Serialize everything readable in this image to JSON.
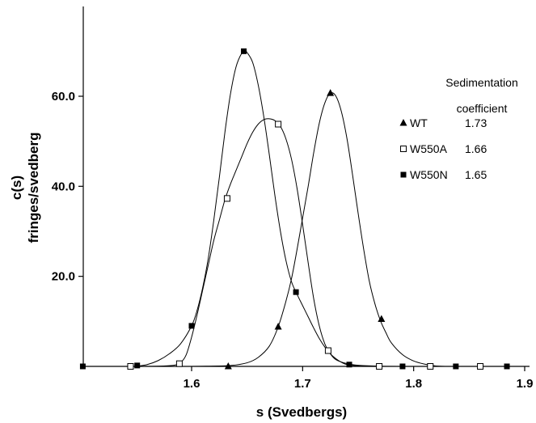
{
  "chart_data": {
    "type": "line",
    "xlabel": "s (Svedbergs)",
    "ylabel_line1": "c(s)",
    "ylabel_line2": "fringes/svedberg",
    "xlim": [
      1.5,
      1.9
    ],
    "ylim": [
      0,
      80
    ],
    "x_ticks": [
      1.6,
      1.7,
      1.8,
      1.9
    ],
    "x_tick_labels": [
      "1.6",
      "1.7",
      "1.8",
      "1.9"
    ],
    "y_ticks": [
      20,
      40,
      60
    ],
    "y_tick_labels": [
      "20.0",
      "40.0",
      "60.0"
    ],
    "grid": false,
    "legend": {
      "placement": "right",
      "header_line1": "Sedimentation",
      "header_line2": "coefficient"
    },
    "series": [
      {
        "name": "WT",
        "value": "1.73",
        "marker": "filled-triangle",
        "curve": [
          [
            1.595,
            0
          ],
          [
            1.615,
            0.05
          ],
          [
            1.635,
            0.2
          ],
          [
            1.65,
            0.8
          ],
          [
            1.66,
            2.0
          ],
          [
            1.67,
            4.5
          ],
          [
            1.678,
            8.8
          ],
          [
            1.685,
            14.5
          ],
          [
            1.69,
            19.5
          ],
          [
            1.695,
            26
          ],
          [
            1.7,
            33
          ],
          [
            1.705,
            40
          ],
          [
            1.71,
            47.5
          ],
          [
            1.715,
            54
          ],
          [
            1.72,
            58.5
          ],
          [
            1.725,
            60.7
          ],
          [
            1.73,
            60
          ],
          [
            1.735,
            56.5
          ],
          [
            1.74,
            50.5
          ],
          [
            1.745,
            42.5
          ],
          [
            1.75,
            34
          ],
          [
            1.755,
            26
          ],
          [
            1.76,
            19
          ],
          [
            1.765,
            14
          ],
          [
            1.77,
            10.2
          ],
          [
            1.775,
            7.5
          ],
          [
            1.78,
            5.2
          ],
          [
            1.79,
            2.6
          ],
          [
            1.8,
            1.2
          ],
          [
            1.81,
            0.5
          ],
          [
            1.82,
            0.1
          ],
          [
            1.83,
            0
          ]
        ],
        "points": [
          [
            1.633,
            0
          ],
          [
            1.678,
            8.8
          ],
          [
            1.725,
            60.7
          ],
          [
            1.771,
            10.5
          ]
        ]
      },
      {
        "name": "W550A",
        "value": "1.66",
        "marker": "open-square",
        "curve": [
          [
            1.555,
            0
          ],
          [
            1.575,
            0.1
          ],
          [
            1.585,
            0.3
          ],
          [
            1.59,
            0.8
          ],
          [
            1.595,
            2.5
          ],
          [
            1.6,
            6.5
          ],
          [
            1.605,
            11.5
          ],
          [
            1.61,
            17
          ],
          [
            1.615,
            22.5
          ],
          [
            1.62,
            28
          ],
          [
            1.625,
            32.5
          ],
          [
            1.63,
            37
          ],
          [
            1.635,
            40.5
          ],
          [
            1.64,
            43.5
          ],
          [
            1.645,
            46.5
          ],
          [
            1.65,
            49.5
          ],
          [
            1.655,
            52
          ],
          [
            1.66,
            53.8
          ],
          [
            1.665,
            54.8
          ],
          [
            1.67,
            55
          ],
          [
            1.675,
            54.6
          ],
          [
            1.68,
            53.3
          ],
          [
            1.685,
            50.5
          ],
          [
            1.69,
            46
          ],
          [
            1.695,
            39.5
          ],
          [
            1.7,
            31.5
          ],
          [
            1.705,
            23
          ],
          [
            1.71,
            15
          ],
          [
            1.715,
            9
          ],
          [
            1.72,
            5
          ],
          [
            1.725,
            2.8
          ],
          [
            1.73,
            1.5
          ],
          [
            1.74,
            0.6
          ],
          [
            1.75,
            0.25
          ],
          [
            1.77,
            0.05
          ],
          [
            1.8,
            0
          ]
        ],
        "points": [
          [
            1.545,
            0
          ],
          [
            1.589,
            0.6
          ],
          [
            1.632,
            37.3
          ],
          [
            1.678,
            53.8
          ],
          [
            1.723,
            3.5
          ],
          [
            1.769,
            0
          ],
          [
            1.815,
            0
          ],
          [
            1.86,
            0
          ]
        ]
      },
      {
        "name": "W550N",
        "value": "1.65",
        "marker": "filled-square",
        "curve": [
          [
            1.55,
            0
          ],
          [
            1.56,
            0.4
          ],
          [
            1.57,
            1.3
          ],
          [
            1.58,
            2.8
          ],
          [
            1.59,
            5.0
          ],
          [
            1.6,
            9.0
          ],
          [
            1.605,
            12.5
          ],
          [
            1.61,
            17.5
          ],
          [
            1.615,
            24
          ],
          [
            1.62,
            32.5
          ],
          [
            1.625,
            42
          ],
          [
            1.63,
            52
          ],
          [
            1.635,
            60.5
          ],
          [
            1.64,
            66.5
          ],
          [
            1.645,
            69.5
          ],
          [
            1.648,
            70
          ],
          [
            1.65,
            69.7
          ],
          [
            1.655,
            67.5
          ],
          [
            1.66,
            62.5
          ],
          [
            1.665,
            55.5
          ],
          [
            1.67,
            47
          ],
          [
            1.675,
            38
          ],
          [
            1.68,
            30
          ],
          [
            1.685,
            23.5
          ],
          [
            1.69,
            18.8
          ],
          [
            1.695,
            16
          ],
          [
            1.7,
            13.5
          ],
          [
            1.705,
            11
          ],
          [
            1.71,
            8.5
          ],
          [
            1.715,
            6.2
          ],
          [
            1.72,
            4.3
          ],
          [
            1.725,
            2.8
          ],
          [
            1.73,
            1.7
          ],
          [
            1.735,
            0.9
          ],
          [
            1.74,
            0.4
          ],
          [
            1.75,
            0.1
          ],
          [
            1.76,
            0
          ]
        ],
        "points": [
          [
            1.502,
            0
          ],
          [
            1.551,
            0.2
          ],
          [
            1.6,
            9.0
          ],
          [
            1.647,
            70
          ],
          [
            1.694,
            16.5
          ],
          [
            1.742,
            0.4
          ],
          [
            1.79,
            0
          ],
          [
            1.838,
            0
          ],
          [
            1.884,
            0
          ]
        ]
      }
    ]
  }
}
